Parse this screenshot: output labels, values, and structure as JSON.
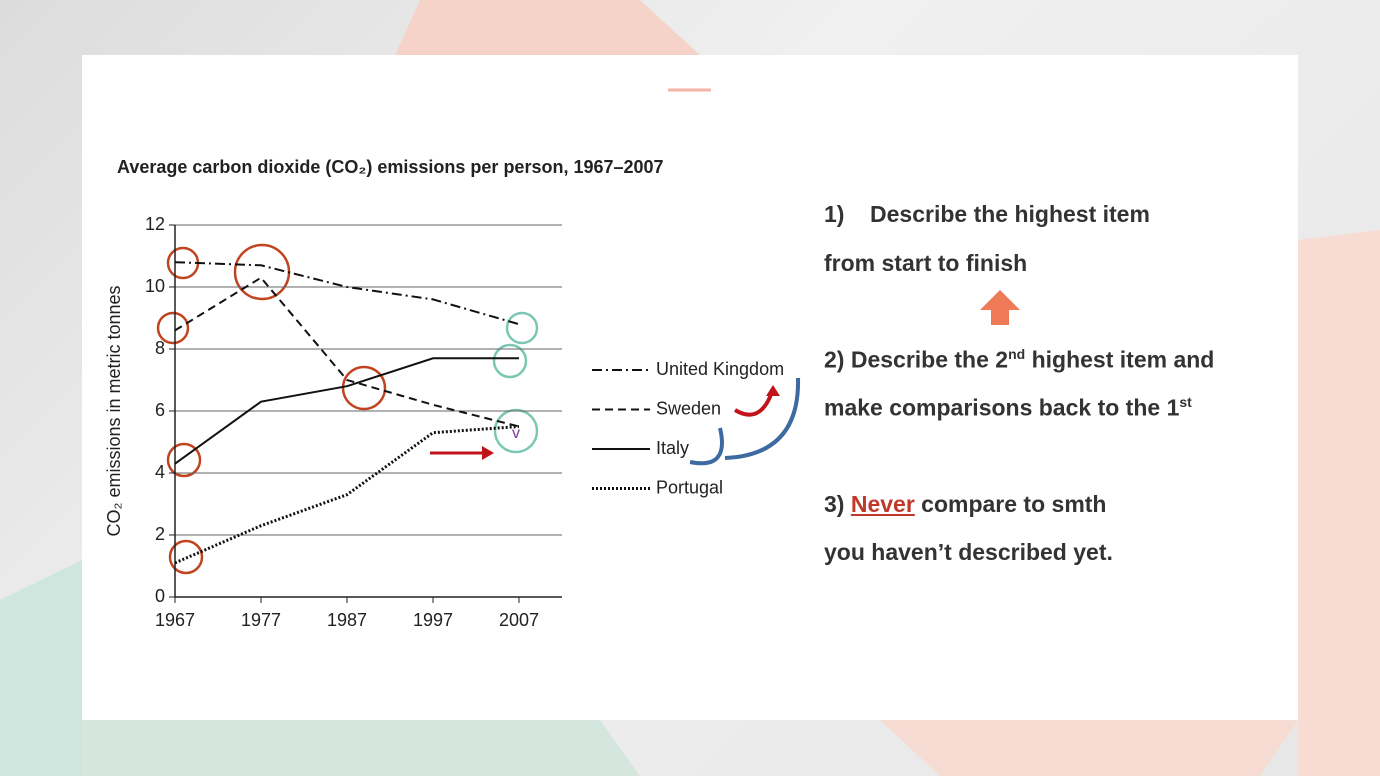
{
  "chart_data": {
    "type": "line",
    "title": "Average carbon dioxide (CO₂) emissions per person, 1967–2007",
    "y_label": "CO₂ emissions in metric tonnes",
    "x": [
      1967,
      1977,
      1987,
      1997,
      2007
    ],
    "xlim": [
      1967,
      2012
    ],
    "xticks": [
      1967,
      1977,
      1987,
      1997,
      2007
    ],
    "ylim": [
      0,
      12
    ],
    "yticks": [
      0,
      2,
      4,
      6,
      8,
      10,
      12
    ],
    "grid": true,
    "legend": "right",
    "series": [
      {
        "name": "United Kingdom",
        "color": "#111111",
        "dash": "dashdot",
        "values": [
          10.8,
          10.7,
          10.0,
          9.6,
          8.8
        ]
      },
      {
        "name": "Sweden",
        "color": "#111111",
        "dash": "dashed",
        "values": [
          8.6,
          10.3,
          7.0,
          6.2,
          5.5
        ]
      },
      {
        "name": "Italy",
        "color": "#111111",
        "dash": "solid",
        "values": [
          4.3,
          6.3,
          6.8,
          7.7,
          7.7
        ]
      },
      {
        "name": "Portugal",
        "color": "#111111",
        "dash": "dotted",
        "values": [
          1.1,
          2.3,
          3.3,
          5.3,
          5.5
        ]
      }
    ],
    "annotations": [
      "v"
    ]
  },
  "slide": {
    "points": [
      [
        "1)    Describe the highest item"
      ],
      [
        "from start to finish"
      ],
      [
        "2) Describe the 2",
        "nd",
        " highest item and"
      ],
      [
        "make comparisons back to the 1",
        "st"
      ],
      [
        "3) ",
        "Never",
        " compare to smth"
      ],
      [
        "you haven’t described yet."
      ]
    ]
  }
}
